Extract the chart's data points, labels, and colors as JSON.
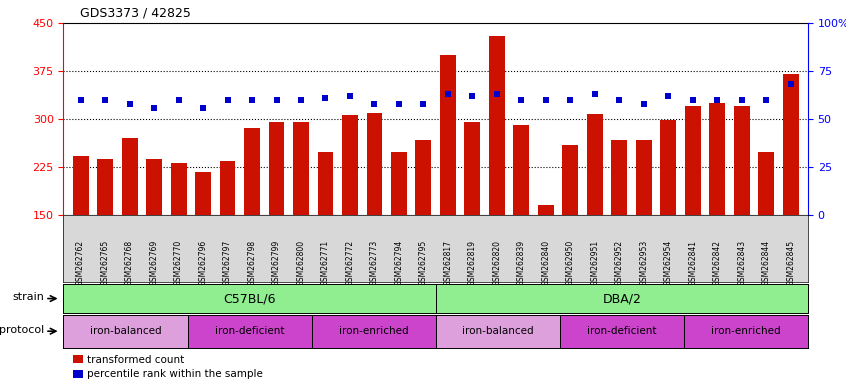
{
  "title": "GDS3373 / 42825",
  "samples": [
    "GSM262762",
    "GSM262765",
    "GSM262768",
    "GSM262769",
    "GSM262770",
    "GSM262796",
    "GSM262797",
    "GSM262798",
    "GSM262799",
    "GSM262800",
    "GSM262771",
    "GSM262772",
    "GSM262773",
    "GSM262794",
    "GSM262795",
    "GSM262817",
    "GSM262819",
    "GSM262820",
    "GSM262839",
    "GSM262840",
    "GSM262950",
    "GSM262951",
    "GSM262952",
    "GSM262953",
    "GSM262954",
    "GSM262841",
    "GSM262842",
    "GSM262843",
    "GSM262844",
    "GSM262845"
  ],
  "red_values": [
    242,
    238,
    271,
    237,
    232,
    218,
    235,
    286,
    295,
    295,
    248,
    307,
    309,
    248,
    268,
    400,
    295,
    430,
    290,
    165,
    260,
    308,
    268,
    268,
    298,
    320,
    325,
    320,
    248,
    370
  ],
  "blue_pct": [
    60,
    60,
    58,
    56,
    60,
    56,
    60,
    60,
    60,
    60,
    61,
    62,
    58,
    58,
    58,
    63,
    62,
    63,
    60,
    60,
    60,
    63,
    60,
    58,
    62,
    60,
    60,
    60,
    60,
    68
  ],
  "ylim_left": [
    150,
    450
  ],
  "ylim_right": [
    0,
    100
  ],
  "yticks_left": [
    150,
    225,
    300,
    375,
    450
  ],
  "yticks_right": [
    0,
    25,
    50,
    75,
    100
  ],
  "bar_color": "#cc1100",
  "dot_color": "#0000cc",
  "strain_color": "#90ee90",
  "protocol_balanced_color": "#dda0dd",
  "protocol_other_color": "#cc44cc",
  "strain_groups": [
    {
      "label": "C57BL/6",
      "start": 0,
      "end": 15
    },
    {
      "label": "DBA/2",
      "start": 15,
      "end": 30
    }
  ],
  "protocol_groups": [
    {
      "label": "iron-balanced",
      "start": 0,
      "end": 5,
      "type": "balanced"
    },
    {
      "label": "iron-deficient",
      "start": 5,
      "end": 10,
      "type": "other"
    },
    {
      "label": "iron-enriched",
      "start": 10,
      "end": 15,
      "type": "other"
    },
    {
      "label": "iron-balanced",
      "start": 15,
      "end": 20,
      "type": "balanced"
    },
    {
      "label": "iron-deficient",
      "start": 20,
      "end": 25,
      "type": "other"
    },
    {
      "label": "iron-enriched",
      "start": 25,
      "end": 30,
      "type": "other"
    }
  ]
}
